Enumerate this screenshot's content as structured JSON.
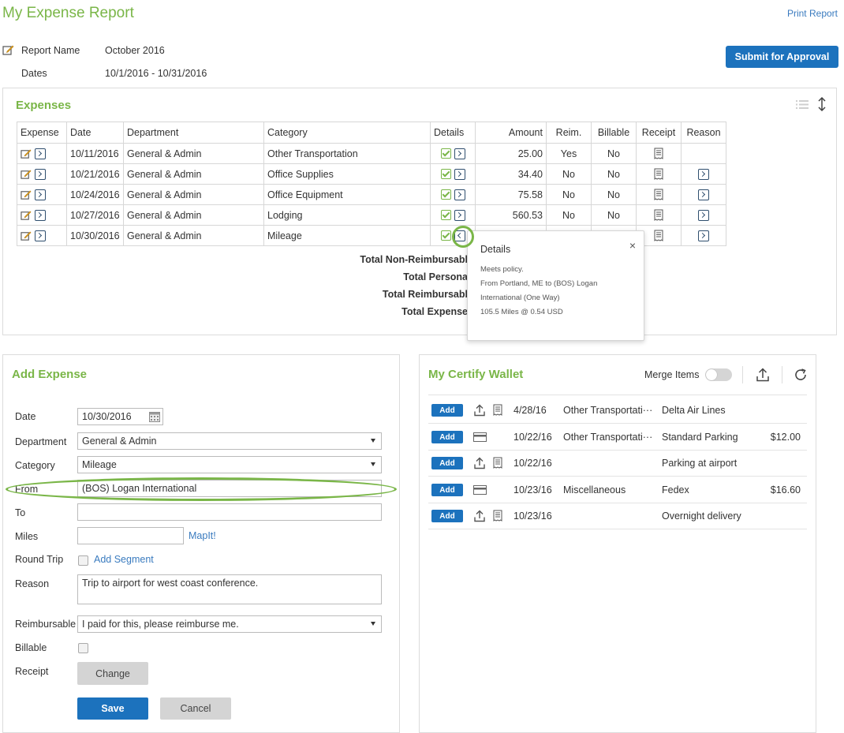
{
  "header": {
    "title": "My Expense Report",
    "print_label": "Print Report",
    "submit_label": "Submit for Approval"
  },
  "report": {
    "name_label": "Report Name",
    "name_value": "October 2016",
    "dates_label": "Dates",
    "dates_value": "10/1/2016 - 10/31/2016"
  },
  "expenses": {
    "title": "Expenses",
    "columns": [
      "Expense",
      "Date",
      "Department",
      "Category",
      "Details",
      "Amount",
      "Reim.",
      "Billable",
      "Receipt",
      "Reason"
    ],
    "rows": [
      {
        "date": "10/11/2016",
        "department": "General & Admin",
        "category": "Other Transportation",
        "amount": "25.00",
        "reim": "Yes",
        "billable": "No"
      },
      {
        "date": "10/21/2016",
        "department": "General & Admin",
        "category": "Office Supplies",
        "amount": "34.40",
        "reim": "No",
        "billable": "No"
      },
      {
        "date": "10/24/2016",
        "department": "General & Admin",
        "category": "Office Equipment",
        "amount": "75.58",
        "reim": "No",
        "billable": "No"
      },
      {
        "date": "10/27/2016",
        "department": "General & Admin",
        "category": "Lodging",
        "amount": "560.53",
        "reim": "No",
        "billable": "No"
      },
      {
        "date": "10/30/2016",
        "department": "General & Admin",
        "category": "Mileage",
        "amount": "",
        "reim": "",
        "billable": ""
      }
    ],
    "totals": [
      "Total Non-Reimbursabl",
      "Total Persona",
      "Total Reimbursabl",
      "Total Expense"
    ]
  },
  "popover": {
    "title": "Details",
    "close": "×",
    "policy": "Meets policy.",
    "line1": "From Portland, ME to (BOS) Logan",
    "line2": "International (One Way)",
    "line3": "105.5 Miles @ 0.54 USD"
  },
  "add_expense": {
    "title": "Add Expense",
    "date_label": "Date",
    "date_value": "10/30/2016",
    "department_label": "Department",
    "department_value": "General & Admin",
    "category_label": "Category",
    "category_value": "Mileage",
    "from_label": "From",
    "from_value": "(BOS) Logan International",
    "to_label": "To",
    "to_value": "",
    "miles_label": "Miles",
    "miles_value": "",
    "mapit_label": "MapIt!",
    "round_trip_label": "Round Trip",
    "add_segment_label": "Add Segment",
    "reason_label": "Reason",
    "reason_value": "Trip to airport for west coast conference.",
    "reimbursable_label": "Reimbursable",
    "reimbursable_value": "I paid for this, please reimburse me.",
    "billable_label": "Billable",
    "receipt_label": "Receipt",
    "change_label": "Change",
    "save_label": "Save",
    "cancel_label": "Cancel"
  },
  "wallet": {
    "title": "My Certify Wallet",
    "merge_label": "Merge Items",
    "add_label": "Add",
    "items": [
      {
        "date": "4/28/16",
        "category": "Other Transportati···",
        "merchant": "Delta Air Lines",
        "amount": "",
        "kind": "upload"
      },
      {
        "date": "10/22/16",
        "category": "Other Transportati···",
        "merchant": "Standard Parking",
        "amount": "$12.00",
        "kind": "card"
      },
      {
        "date": "10/22/16",
        "category": "",
        "merchant": "Parking at airport",
        "amount": "",
        "kind": "upload"
      },
      {
        "date": "10/23/16",
        "category": "Miscellaneous",
        "merchant": "Fedex",
        "amount": "$16.60",
        "kind": "card"
      },
      {
        "date": "10/23/16",
        "category": "",
        "merchant": "Overnight delivery",
        "amount": "",
        "kind": "upload"
      }
    ]
  },
  "colors": {
    "accent": "#7ab648",
    "primary": "#1c72bd",
    "link": "#3a7bbf"
  }
}
